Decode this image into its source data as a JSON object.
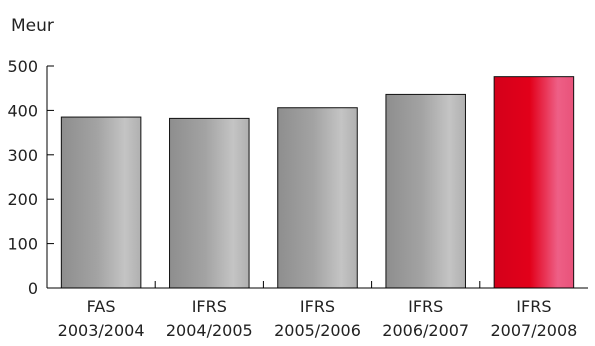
{
  "chart_data": {
    "type": "bar",
    "ylabel": "Meur",
    "xlabel": "",
    "ylim": [
      0,
      500
    ],
    "yticks": [
      0,
      100,
      200,
      300,
      400,
      500
    ],
    "categories": [
      [
        "FAS",
        "2003/2004"
      ],
      [
        "IFRS",
        "2004/2005"
      ],
      [
        "IFRS",
        "2005/2006"
      ],
      [
        "IFRS",
        "2006/2007"
      ],
      [
        "IFRS",
        "2007/2008"
      ]
    ],
    "values": [
      385,
      382,
      406,
      436,
      476
    ],
    "bar_colors": [
      "#9a9a9a",
      "#9a9a9a",
      "#9a9a9a",
      "#9a9a9a",
      "#e2001a"
    ],
    "grid": false,
    "legend": "none"
  }
}
